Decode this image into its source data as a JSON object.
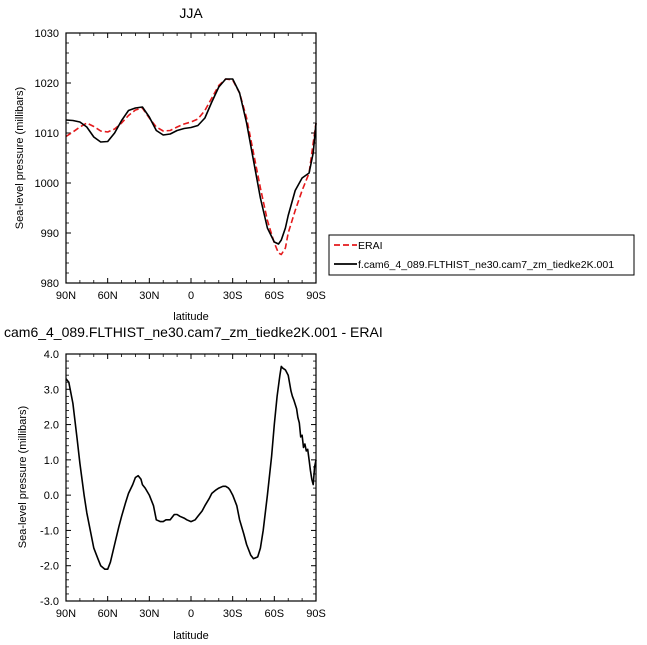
{
  "chart_data": [
    {
      "type": "line",
      "title": "JJA",
      "xlabel": "latitude",
      "ylabel": "Sea-level pressure (millibars)",
      "xlim": [
        90,
        -90
      ],
      "ylim": [
        980,
        1030
      ],
      "x_tick_labels": [
        "90N",
        "60N",
        "30N",
        "0",
        "30S",
        "60S",
        "90S"
      ],
      "y_tick_labels": [
        "980",
        "990",
        "1000",
        "1010",
        "1020",
        "1030"
      ],
      "legend_position": "right",
      "series": [
        {
          "name": "ERAI",
          "color": "#e41a1c",
          "style": "dashed",
          "x": [
            90,
            85,
            80,
            75,
            70,
            65,
            60,
            55,
            50,
            45,
            40,
            35,
            30,
            25,
            20,
            15,
            10,
            5,
            0,
            -5,
            -10,
            -15,
            -20,
            -25,
            -30,
            -35,
            -40,
            -45,
            -50,
            -55,
            -60,
            -63,
            -65,
            -68,
            -70,
            -75,
            -80,
            -85,
            -88,
            -90
          ],
          "y": [
            1009.3,
            1010.2,
            1011.2,
            1012.0,
            1011.3,
            1010.4,
            1010.2,
            1010.8,
            1012.0,
            1013.5,
            1014.6,
            1015.0,
            1013.0,
            1011.2,
            1010.4,
            1010.5,
            1011.2,
            1011.8,
            1012.2,
            1012.8,
            1014.5,
            1017.0,
            1019.5,
            1020.8,
            1020.6,
            1018.0,
            1013.0,
            1006.0,
            999.0,
            992.5,
            988.0,
            986.0,
            985.7,
            987.0,
            990.0,
            994.5,
            998.5,
            1002.0,
            1008.0,
            1012.0
          ]
        },
        {
          "name": "f.cam6_4_089.FLTHIST_ne30.cam7_zm_tiedke2K.001",
          "color": "#000000",
          "style": "solid",
          "x": [
            90,
            85,
            80,
            75,
            70,
            65,
            60,
            55,
            50,
            45,
            40,
            35,
            30,
            25,
            20,
            15,
            10,
            5,
            0,
            -5,
            -10,
            -15,
            -20,
            -25,
            -30,
            -35,
            -40,
            -45,
            -50,
            -55,
            -60,
            -63,
            -65,
            -68,
            -70,
            -75,
            -80,
            -85,
            -88,
            -90
          ],
          "y": [
            1012.6,
            1012.5,
            1012.2,
            1011.2,
            1009.2,
            1008.2,
            1008.3,
            1010.0,
            1012.5,
            1014.5,
            1015.0,
            1015.2,
            1013.2,
            1010.5,
            1009.6,
            1009.8,
            1010.5,
            1010.9,
            1011.1,
            1011.5,
            1013.0,
            1016.2,
            1019.2,
            1020.8,
            1020.8,
            1018.0,
            1012.0,
            1004.5,
            997.0,
            991.0,
            988.2,
            987.8,
            988.6,
            991.0,
            993.5,
            998.5,
            1001.0,
            1002.0,
            1006.0,
            1012.0
          ]
        }
      ]
    },
    {
      "type": "line",
      "title": "cam6_4_089.FLTHIST_ne30.cam7_zm_tiedke2K.001 - ERAI",
      "xlabel": "latitude",
      "ylabel": "Sea-level pressure (millibars)",
      "xlim": [
        90,
        -90
      ],
      "ylim": [
        -3.0,
        4.0
      ],
      "x_tick_labels": [
        "90N",
        "60N",
        "30N",
        "0",
        "30S",
        "60S",
        "90S"
      ],
      "y_tick_labels": [
        "-3.0",
        "-2.0",
        "-1.0",
        "0.0",
        "1.0",
        "2.0",
        "3.0",
        "4.0"
      ],
      "series": [
        {
          "color": "#000000",
          "style": "solid",
          "x": [
            90,
            88,
            85,
            82,
            80,
            77,
            75,
            72,
            70,
            67,
            65,
            62,
            60,
            58,
            55,
            52,
            50,
            47,
            45,
            42,
            40,
            38,
            36,
            35,
            33,
            30,
            27,
            25,
            22,
            20,
            18,
            15,
            13,
            12,
            10,
            8,
            5,
            3,
            0,
            -3,
            -5,
            -8,
            -10,
            -13,
            -15,
            -18,
            -20,
            -23,
            -25,
            -27,
            -28,
            -30,
            -33,
            -35,
            -38,
            -40,
            -43,
            -45,
            -48,
            -50,
            -52,
            -55,
            -58,
            -60,
            -62,
            -64,
            -65,
            -66,
            -68,
            -70,
            -72,
            -73,
            -74,
            -76,
            -77,
            -78,
            -79,
            -80,
            -81,
            -82,
            -83,
            -84,
            -85,
            -86,
            -87,
            -88,
            -89,
            -90
          ],
          "y": [
            3.3,
            3.2,
            2.6,
            1.6,
            0.9,
            0.0,
            -0.5,
            -1.1,
            -1.5,
            -1.8,
            -2.0,
            -2.1,
            -2.1,
            -1.9,
            -1.4,
            -0.9,
            -0.6,
            -0.2,
            0.05,
            0.3,
            0.5,
            0.55,
            0.45,
            0.3,
            0.2,
            0.0,
            -0.3,
            -0.7,
            -0.75,
            -0.75,
            -0.7,
            -0.7,
            -0.6,
            -0.55,
            -0.55,
            -0.6,
            -0.65,
            -0.7,
            -0.75,
            -0.7,
            -0.6,
            -0.45,
            -0.3,
            -0.1,
            0.05,
            0.15,
            0.2,
            0.25,
            0.25,
            0.2,
            0.15,
            0.0,
            -0.3,
            -0.7,
            -1.1,
            -1.4,
            -1.7,
            -1.8,
            -1.75,
            -1.5,
            -1.0,
            0.0,
            1.1,
            2.0,
            2.8,
            3.4,
            3.65,
            3.6,
            3.55,
            3.4,
            2.95,
            2.8,
            2.7,
            2.45,
            2.2,
            2.05,
            1.65,
            1.7,
            1.35,
            1.45,
            1.25,
            1.3,
            1.0,
            0.7,
            0.45,
            0.3,
            0.8,
            1.0
          ]
        }
      ]
    }
  ]
}
